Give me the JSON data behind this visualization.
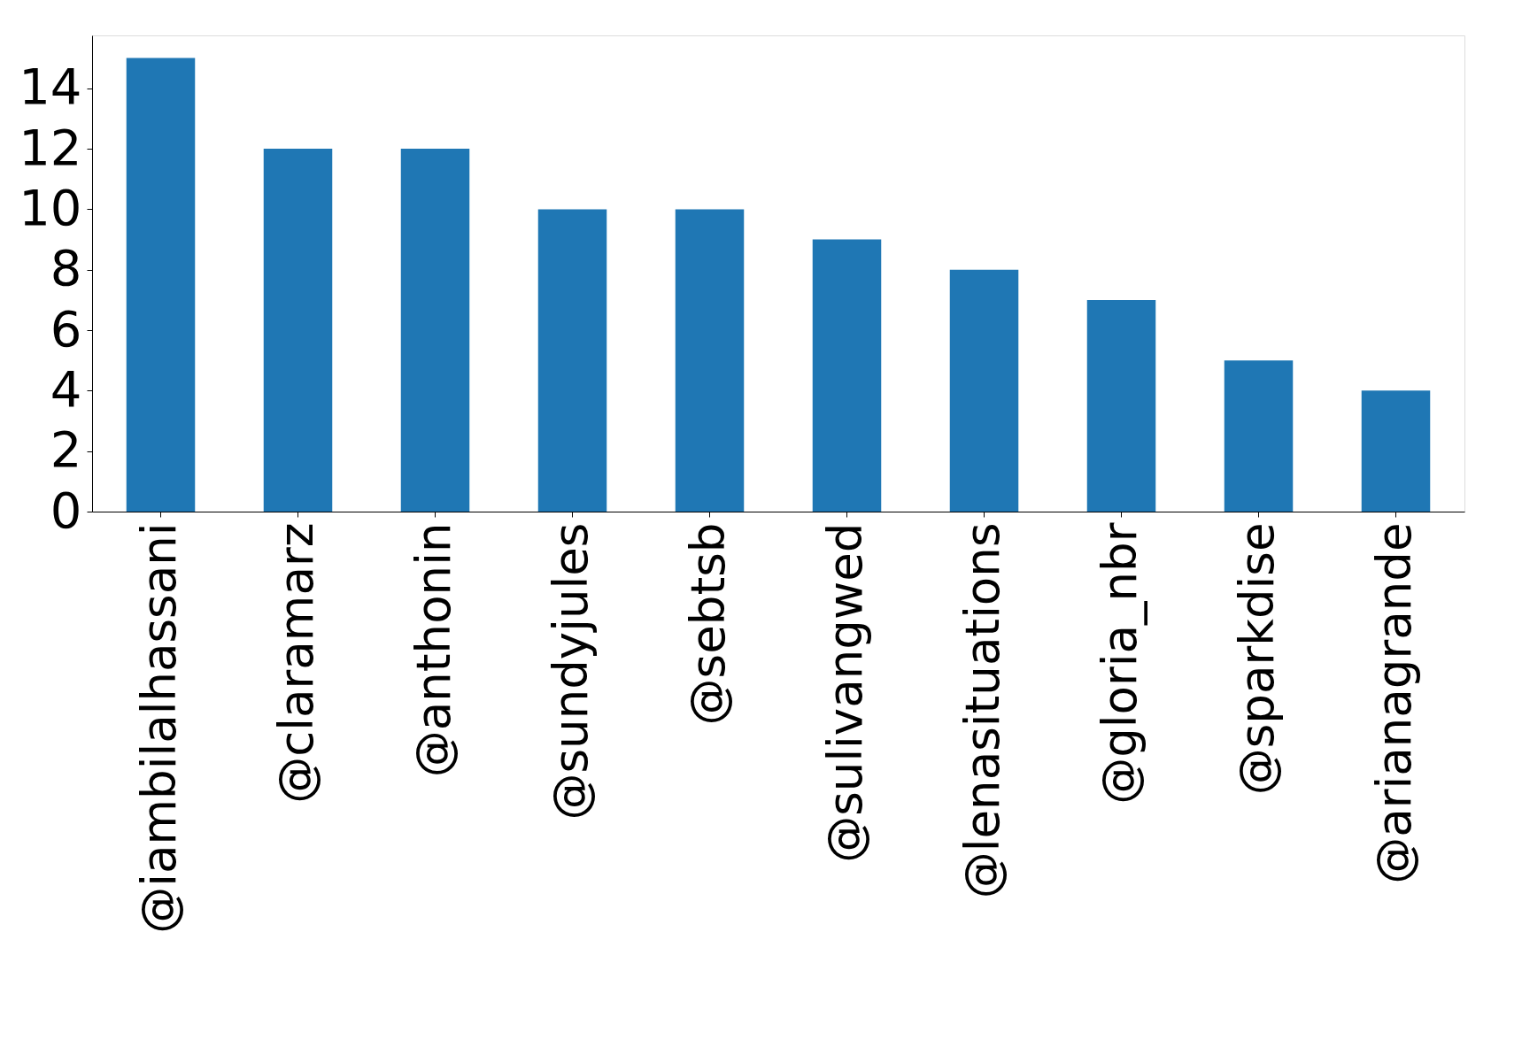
{
  "chart_data": {
    "type": "bar",
    "categories": [
      "@iambilalhassani",
      "@claramarz",
      "@anthonin",
      "@sundyjules",
      "@sebtsb",
      "@sulivangwed",
      "@lenasituations",
      "@gloria_nbr",
      "@sparkdise",
      "@arianagrande"
    ],
    "values": [
      15,
      12,
      12,
      10,
      10,
      9,
      8,
      7,
      5,
      4
    ],
    "color": "#1f77b4",
    "ylim": [
      0,
      15.75
    ],
    "yticks": [
      0,
      2,
      4,
      6,
      8,
      10,
      12,
      14
    ],
    "grid": false
  }
}
